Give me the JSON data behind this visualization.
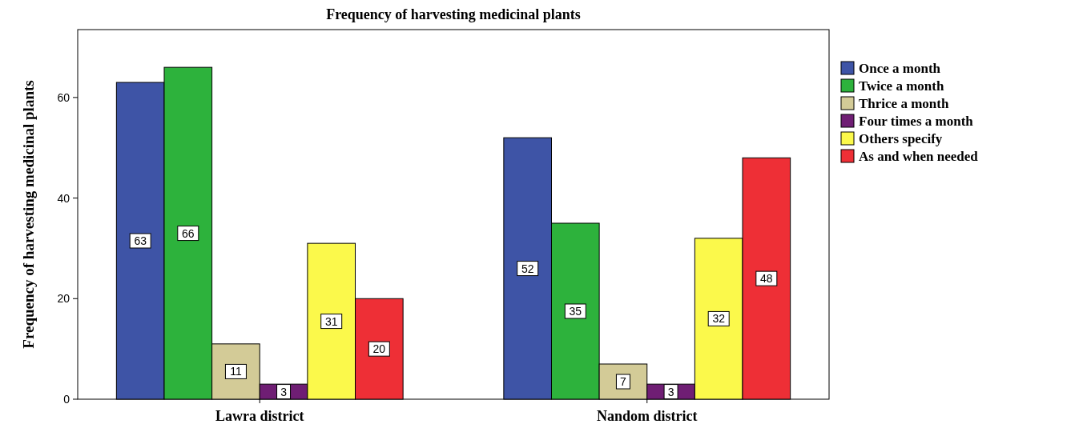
{
  "chart_data": {
    "type": "bar",
    "title": "Frequency of harvesting medicinal plants",
    "ylabel": "Frequency of harvesting medicinal plants",
    "categories": [
      "Lawra district",
      "Nandom district"
    ],
    "series": [
      {
        "name": "Once a month",
        "color": "#3e54a6",
        "values": [
          63,
          52
        ]
      },
      {
        "name": "Twice a month",
        "color": "#2db23c",
        "values": [
          66,
          35
        ]
      },
      {
        "name": "Thrice a month",
        "color": "#d3cb97",
        "values": [
          11,
          7
        ]
      },
      {
        "name": "Four times a month",
        "color": "#6f1e74",
        "values": [
          3,
          3
        ]
      },
      {
        "name": "Others specify",
        "color": "#fbf94b",
        "values": [
          31,
          32
        ]
      },
      {
        "name": "As and when needed",
        "color": "#ee2f36",
        "values": [
          20,
          48
        ]
      }
    ],
    "ylim": [
      0,
      73.5
    ],
    "yticks": [
      0,
      20,
      40,
      60
    ],
    "data_labels": true,
    "legend": "right",
    "grid": false
  }
}
